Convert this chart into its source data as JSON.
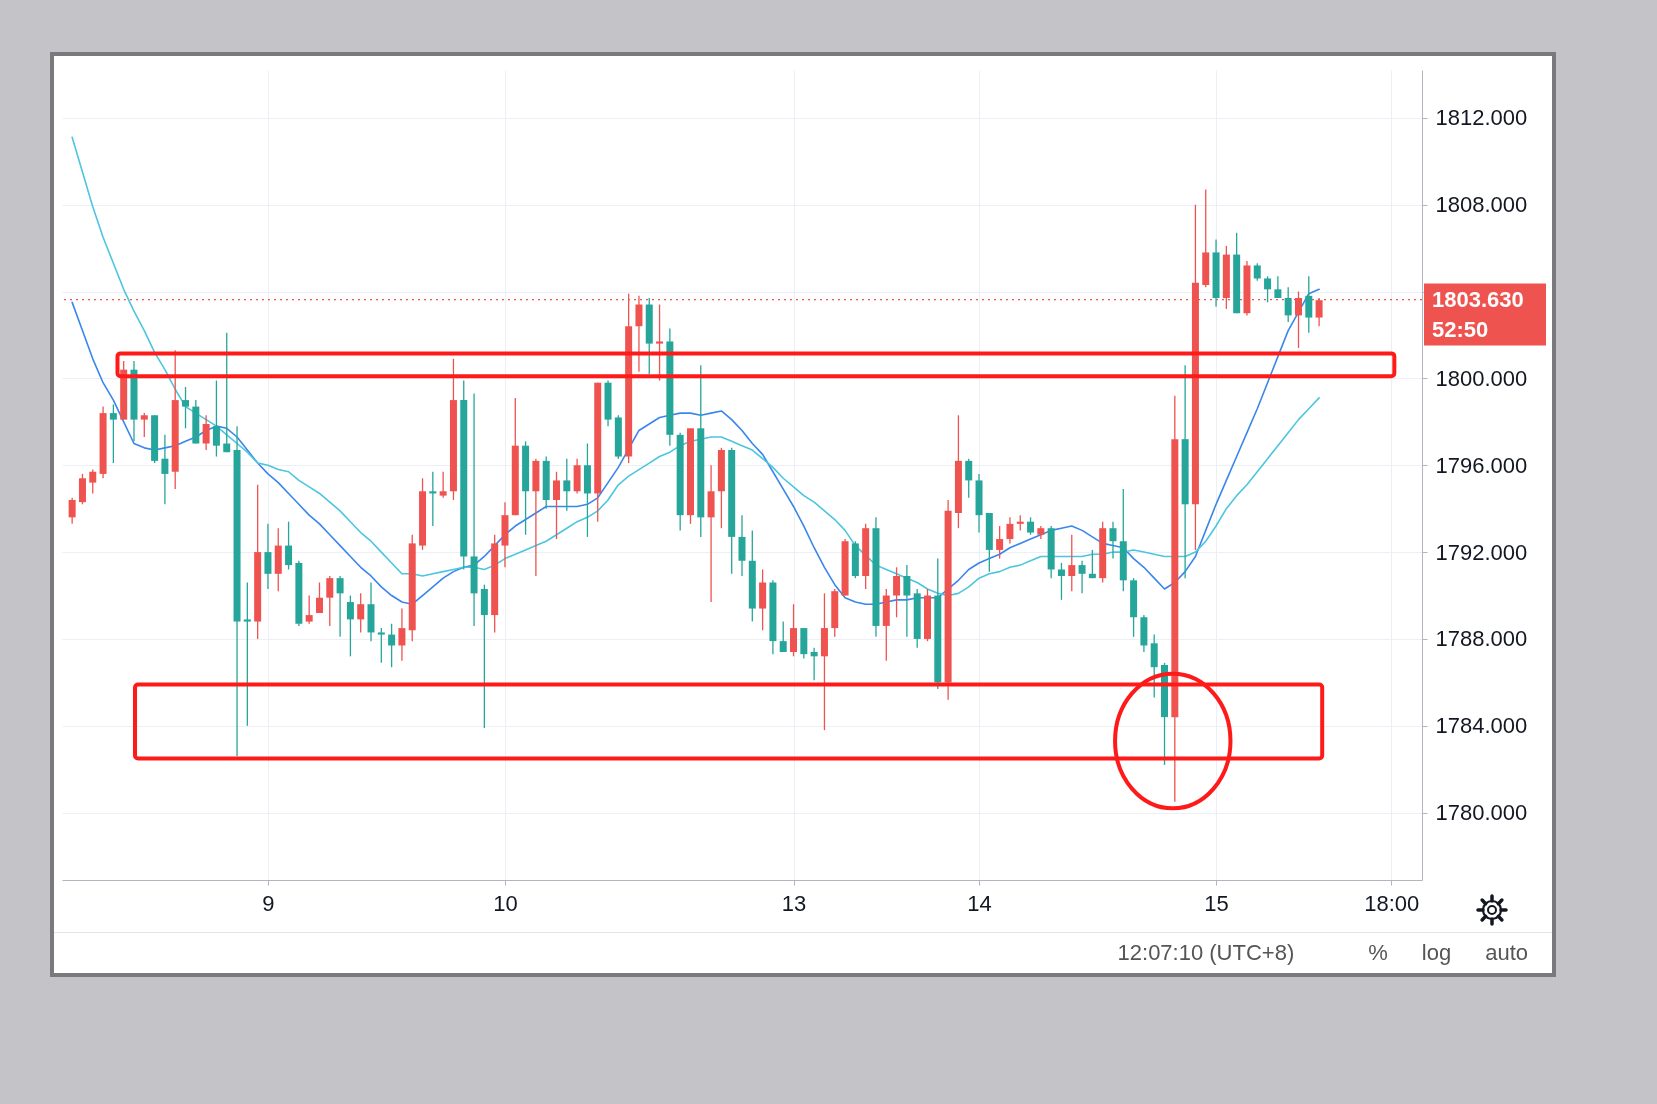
{
  "chart_data": {
    "type": "candlestick",
    "categories": [
      null,
      null,
      null,
      null,
      null,
      null,
      null,
      null,
      null,
      null,
      null,
      null,
      null,
      null,
      null,
      null,
      null,
      null,
      null,
      "9",
      null,
      null,
      null,
      null,
      null,
      null,
      null,
      null,
      null,
      null,
      null,
      null,
      null,
      null,
      null,
      null,
      null,
      null,
      null,
      null,
      null,
      null,
      "10",
      null,
      null,
      null,
      null,
      null,
      null,
      null,
      null,
      null,
      null,
      null,
      null,
      null,
      null,
      null,
      null,
      null,
      null,
      null,
      null,
      null,
      null,
      null,
      null,
      null,
      null,
      null,
      "13",
      null,
      null,
      null,
      null,
      null,
      null,
      null,
      null,
      null,
      null,
      null,
      null,
      null,
      null,
      null,
      null,
      null,
      "14",
      null,
      null,
      null,
      null,
      null,
      null,
      null,
      null,
      null,
      null,
      null,
      null,
      null,
      null,
      null,
      null,
      null,
      null,
      null,
      null,
      null,
      null,
      "15",
      null,
      null,
      null,
      null,
      null,
      null,
      null,
      null,
      null,
      null,
      null,
      null,
      null,
      null,
      null,
      null,
      "18:00"
    ],
    "ohlc": [
      [
        1793.6,
        1794.5,
        1793.3,
        1794.4
      ],
      [
        1794.3,
        1795.6,
        1794.2,
        1795.4
      ],
      [
        1795.2,
        1795.8,
        1794.7,
        1795.7
      ],
      [
        1795.6,
        1798.7,
        1795.4,
        1798.4
      ],
      [
        1798.4,
        1798.8,
        1796.1,
        1798.1
      ],
      [
        1798.1,
        1800.8,
        1798.1,
        1800.4
      ],
      [
        1800.4,
        1800.8,
        1797.1,
        1798.1
      ],
      [
        1798.1,
        1798.4,
        1797.3,
        1798.3
      ],
      [
        1798.3,
        1798.3,
        1796.1,
        1796.2
      ],
      [
        1796.3,
        1797.4,
        1794.2,
        1795.6
      ],
      [
        1795.7,
        1801.3,
        1794.9,
        1799.0
      ],
      [
        1799.0,
        1799.6,
        1797.7,
        1798.7
      ],
      [
        1798.7,
        1799.0,
        1797.0,
        1797.0
      ],
      [
        1797.0,
        1798.3,
        1796.7,
        1797.9
      ],
      [
        1797.8,
        1799.9,
        1796.4,
        1796.9
      ],
      [
        1797.0,
        1802.1,
        1796.6,
        1796.6
      ],
      [
        1796.7,
        1797.8,
        1782.6,
        1788.8
      ],
      [
        1788.9,
        1790.6,
        1784.0,
        1788.8
      ],
      [
        1788.8,
        1795.1,
        1788.0,
        1792.0
      ],
      [
        1792.0,
        1793.3,
        1790.3,
        1791.0
      ],
      [
        1791.0,
        1793.1,
        1790.2,
        1792.3
      ],
      [
        1792.3,
        1793.4,
        1791.2,
        1791.4
      ],
      [
        1791.5,
        1791.6,
        1788.6,
        1788.7
      ],
      [
        1788.8,
        1790.0,
        1788.7,
        1789.1
      ],
      [
        1789.2,
        1790.6,
        1789.2,
        1789.9
      ],
      [
        1789.9,
        1790.9,
        1788.6,
        1790.8
      ],
      [
        1790.8,
        1790.9,
        1788.1,
        1790.1
      ],
      [
        1789.7,
        1790.0,
        1787.2,
        1788.9
      ],
      [
        1788.9,
        1790.1,
        1788.3,
        1789.6
      ],
      [
        1789.6,
        1790.6,
        1787.9,
        1788.3
      ],
      [
        1788.3,
        1788.5,
        1786.9,
        1788.2
      ],
      [
        1788.2,
        1788.7,
        1786.7,
        1787.7
      ],
      [
        1787.7,
        1789.4,
        1787.0,
        1788.5
      ],
      [
        1788.4,
        1792.8,
        1787.9,
        1792.4
      ],
      [
        1792.3,
        1795.4,
        1792.1,
        1794.8
      ],
      [
        1794.8,
        1795.7,
        1793.2,
        1794.7
      ],
      [
        1794.6,
        1795.7,
        1794.5,
        1794.8
      ],
      [
        1794.8,
        1800.9,
        1794.4,
        1799.0
      ],
      [
        1799.0,
        1799.9,
        1791.2,
        1791.8
      ],
      [
        1791.8,
        1799.3,
        1788.6,
        1790.1
      ],
      [
        1790.3,
        1790.5,
        1783.9,
        1789.1
      ],
      [
        1789.1,
        1792.8,
        1788.3,
        1792.4
      ],
      [
        1792.3,
        1794.3,
        1791.3,
        1793.7
      ],
      [
        1793.7,
        1799.1,
        1793.7,
        1796.9
      ],
      [
        1796.9,
        1797.1,
        1792.8,
        1794.8
      ],
      [
        1794.8,
        1796.3,
        1790.9,
        1796.2
      ],
      [
        1796.2,
        1796.4,
        1794.0,
        1794.4
      ],
      [
        1794.4,
        1795.7,
        1792.6,
        1795.3
      ],
      [
        1795.3,
        1796.3,
        1793.9,
        1794.8
      ],
      [
        1794.8,
        1796.3,
        1794.7,
        1796.0
      ],
      [
        1796.0,
        1797.0,
        1792.7,
        1794.7
      ],
      [
        1794.7,
        1799.8,
        1793.4,
        1799.8
      ],
      [
        1799.8,
        1799.9,
        1797.8,
        1798.1
      ],
      [
        1798.2,
        1798.3,
        1796.3,
        1796.4
      ],
      [
        1796.4,
        1803.9,
        1796.1,
        1802.4
      ],
      [
        1802.4,
        1803.8,
        1800.3,
        1803.4
      ],
      [
        1803.4,
        1803.7,
        1800.2,
        1801.6
      ],
      [
        1801.6,
        1803.4,
        1799.9,
        1801.7
      ],
      [
        1801.7,
        1802.3,
        1796.9,
        1797.4
      ],
      [
        1797.4,
        1797.5,
        1793.0,
        1793.7
      ],
      [
        1793.7,
        1797.7,
        1793.3,
        1797.7
      ],
      [
        1797.7,
        1800.6,
        1792.7,
        1793.6
      ],
      [
        1793.6,
        1796.0,
        1789.7,
        1794.8
      ],
      [
        1794.8,
        1796.8,
        1793.1,
        1796.7
      ],
      [
        1796.7,
        1796.8,
        1791.0,
        1792.7
      ],
      [
        1792.7,
        1793.7,
        1790.9,
        1791.6
      ],
      [
        1791.6,
        1793.0,
        1788.8,
        1789.4
      ],
      [
        1789.4,
        1791.2,
        1788.4,
        1790.6
      ],
      [
        1790.6,
        1790.7,
        1787.3,
        1787.9
      ],
      [
        1787.9,
        1788.8,
        1787.4,
        1787.4
      ],
      [
        1787.4,
        1789.6,
        1787.2,
        1788.5
      ],
      [
        1788.5,
        1788.5,
        1787.1,
        1787.3
      ],
      [
        1787.4,
        1787.6,
        1786.1,
        1787.2
      ],
      [
        1787.2,
        1790.1,
        1783.8,
        1788.5
      ],
      [
        1788.5,
        1790.3,
        1788.1,
        1790.2
      ],
      [
        1790.0,
        1792.6,
        1790.0,
        1792.5
      ],
      [
        1792.4,
        1792.5,
        1790.8,
        1790.9
      ],
      [
        1790.9,
        1793.3,
        1790.3,
        1793.1
      ],
      [
        1793.1,
        1793.6,
        1788.1,
        1788.6
      ],
      [
        1788.6,
        1790.3,
        1787.0,
        1790.0
      ],
      [
        1790.0,
        1791.3,
        1789.0,
        1790.9
      ],
      [
        1790.9,
        1791.4,
        1788.1,
        1790.0
      ],
      [
        1790.1,
        1790.3,
        1787.6,
        1788.0
      ],
      [
        1788.0,
        1790.3,
        1787.9,
        1790.0
      ],
      [
        1790.0,
        1791.7,
        1785.7,
        1786.0
      ],
      [
        1786.0,
        1794.4,
        1785.2,
        1793.9
      ],
      [
        1793.8,
        1798.3,
        1793.1,
        1796.2
      ],
      [
        1796.2,
        1796.3,
        1794.5,
        1795.3
      ],
      [
        1795.3,
        1795.6,
        1792.9,
        1793.7
      ],
      [
        1793.8,
        1793.8,
        1791.1,
        1792.1
      ],
      [
        1792.1,
        1793.2,
        1791.7,
        1792.6
      ],
      [
        1792.6,
        1793.6,
        1792.4,
        1793.3
      ],
      [
        1793.3,
        1793.7,
        1793.0,
        1793.4
      ],
      [
        1793.4,
        1793.6,
        1792.8,
        1792.9
      ],
      [
        1792.8,
        1793.2,
        1792.6,
        1793.1
      ],
      [
        1793.1,
        1793.2,
        1790.8,
        1791.2
      ],
      [
        1791.2,
        1791.5,
        1789.8,
        1790.9
      ],
      [
        1790.9,
        1792.8,
        1790.2,
        1791.4
      ],
      [
        1791.4,
        1791.6,
        1790.1,
        1791.0
      ],
      [
        1791.0,
        1792.1,
        1790.8,
        1790.8
      ],
      [
        1790.8,
        1793.4,
        1790.6,
        1793.1
      ],
      [
        1793.1,
        1793.4,
        1791.7,
        1792.5
      ],
      [
        1792.5,
        1794.9,
        1790.2,
        1790.7
      ],
      [
        1790.7,
        1790.8,
        1788.1,
        1789.0
      ],
      [
        1789.0,
        1789.1,
        1787.4,
        1787.7
      ],
      [
        1787.8,
        1788.2,
        1785.3,
        1786.7
      ],
      [
        1786.8,
        1786.9,
        1782.2,
        1784.4
      ],
      [
        1784.4,
        1799.2,
        1780.5,
        1797.2
      ],
      [
        1797.2,
        1800.6,
        1790.8,
        1794.2
      ],
      [
        1794.2,
        1808.0,
        1792.1,
        1804.4
      ],
      [
        1804.3,
        1808.7,
        1804.2,
        1805.8
      ],
      [
        1805.8,
        1806.4,
        1803.3,
        1803.7
      ],
      [
        1803.7,
        1806.1,
        1803.2,
        1805.7
      ],
      [
        1805.7,
        1806.7,
        1803.0,
        1803.0
      ],
      [
        1803.0,
        1805.4,
        1802.9,
        1805.2
      ],
      [
        1805.2,
        1805.3,
        1804.5,
        1804.6
      ],
      [
        1804.6,
        1804.7,
        1803.5,
        1804.1
      ],
      [
        1804.1,
        1804.7,
        1803.7,
        1803.7
      ],
      [
        1803.7,
        1804.2,
        1802.6,
        1802.9
      ],
      [
        1802.9,
        1804.0,
        1801.4,
        1803.7
      ],
      [
        1803.8,
        1804.7,
        1802.1,
        1802.8
      ],
      [
        1802.8,
        1803.7,
        1802.4,
        1803.6
      ],
      null,
      null,
      null,
      null,
      null,
      null,
      null
    ],
    "colors": [
      "#ef5350",
      "#ef5350",
      "#ef5350",
      "#ef5350",
      "#26a69a",
      "#ef5350",
      "#26a69a",
      "#ef5350",
      "#26a69a",
      "#26a69a",
      "#ef5350",
      "#26a69a",
      "#26a69a",
      "#ef5350",
      "#26a69a",
      "#26a69a",
      "#26a69a",
      "#26a69a",
      "#ef5350",
      "#26a69a",
      "#ef5350",
      "#26a69a",
      "#26a69a",
      "#ef5350",
      "#ef5350",
      "#ef5350",
      "#26a69a",
      "#26a69a",
      "#ef5350",
      "#26a69a",
      "#26a69a",
      "#26a69a",
      "#ef5350",
      "#ef5350",
      "#ef5350",
      "#26a69a",
      "#ef5350",
      "#ef5350",
      "#26a69a",
      "#26a69a",
      "#26a69a",
      "#ef5350",
      "#ef5350",
      "#ef5350",
      "#26a69a",
      "#ef5350",
      "#26a69a",
      "#ef5350",
      "#26a69a",
      "#ef5350",
      "#26a69a",
      "#ef5350",
      "#26a69a",
      "#26a69a",
      "#ef5350",
      "#ef5350",
      "#26a69a",
      "#ef5350",
      "#26a69a",
      "#26a69a",
      "#ef5350",
      "#26a69a",
      "#ef5350",
      "#ef5350",
      "#26a69a",
      "#26a69a",
      "#26a69a",
      "#ef5350",
      "#26a69a",
      "#26a69a",
      "#ef5350",
      "#26a69a",
      "#26a69a",
      "#ef5350",
      "#ef5350",
      "#ef5350",
      "#26a69a",
      "#ef5350",
      "#26a69a",
      "#ef5350",
      "#ef5350",
      "#26a69a",
      "#26a69a",
      "#ef5350",
      "#26a69a",
      "#ef5350",
      "#ef5350",
      "#26a69a",
      "#26a69a",
      "#26a69a",
      "#ef5350",
      "#ef5350",
      "#ef5350",
      "#26a69a",
      "#ef5350",
      "#26a69a",
      "#26a69a",
      "#ef5350",
      "#26a69a",
      "#26a69a",
      "#ef5350",
      "#26a69a",
      "#26a69a",
      "#26a69a",
      "#26a69a",
      "#26a69a",
      "#26a69a",
      "#ef5350",
      "#26a69a",
      "#ef5350",
      "#ef5350",
      "#26a69a",
      "#ef5350",
      "#26a69a",
      "#ef5350",
      "#26a69a",
      "#26a69a",
      "#26a69a",
      "#26a69a",
      "#ef5350",
      "#26a69a",
      "#ef5350",
      null,
      null,
      null,
      null,
      null,
      null,
      null
    ],
    "series": [
      {
        "type": "line",
        "color": "#3a86ec",
        "values": [
          1803.5,
          1802.2,
          1800.9,
          1799.8,
          1799.0,
          1798.0,
          1797.0,
          1796.8,
          1796.7,
          1796.8,
          1796.9,
          1797.1,
          1797.3,
          1797.6,
          1797.8,
          1797.7,
          1797.3,
          1796.7,
          1796.1,
          1795.6,
          1795.2,
          1794.7,
          1794.2,
          1793.7,
          1793.3,
          1792.8,
          1792.3,
          1791.8,
          1791.3,
          1790.9,
          1790.4,
          1790.0,
          1789.7,
          1789.6,
          1790.0,
          1790.4,
          1790.8,
          1791.1,
          1791.3,
          1791.4,
          1791.8,
          1792.3,
          1792.8,
          1793.2,
          1793.5,
          1793.8,
          1794.1,
          1794.1,
          1794.1,
          1794.1,
          1794.2,
          1794.5,
          1795.2,
          1795.9,
          null,
          1797.6,
          1797.9,
          1798.2,
          1798.3,
          1798.4,
          1798.4,
          1798.3,
          1798.4,
          1798.5,
          1798.1,
          1797.6,
          1797.0,
          1796.5,
          1795.7,
          1794.9,
          1794.1,
          1793.2,
          1792.2,
          1791.3,
          1790.5,
          1789.9,
          1789.7,
          1789.6,
          1789.6,
          1789.7,
          1789.8,
          1789.8,
          1789.9,
          1789.9,
          1789.9,
          null,
          1790.7,
          1791.2,
          1791.5,
          1791.7,
          1791.9,
          1792.2,
          1792.4,
          1792.6,
          1792.8,
          1793.0,
          1793.1,
          1793.2,
          1793.0,
          1792.7,
          1792.4,
          1792.3,
          1792.2,
          1791.7,
          1791.3,
          1790.8,
          1790.3,
          1790.6,
          1791.1,
          1791.8,
          1793.0,
          1794.2,
          1795.3,
          1796.4,
          1797.5,
          1798.6,
          1799.8,
          1801.0,
          1802.2,
          null,
          1803.9,
          1804.1,
          null,
          null,
          null,
          null,
          null,
          null,
          null
        ]
      },
      {
        "type": "line",
        "color": "#4cc6de",
        "values": [
          1811.1,
          1809.5,
          1807.9,
          1806.5,
          1805.3,
          1804.1,
          1803.1,
          1802.2,
          1801.2,
          1800.4,
          1799.5,
          1798.7,
          1798.4,
          1798.1,
          1797.8,
          1797.4,
          1797.0,
          1796.6,
          1796.1,
          1796.0,
          1795.8,
          1795.7,
          1795.3,
          1795.0,
          1794.7,
          1794.3,
          1793.9,
          1793.4,
          1792.9,
          1792.5,
          1792.0,
          1791.5,
          1791.0,
          1791.0,
          1790.9,
          1791.0,
          1791.1,
          1791.2,
          1791.3,
          1791.3,
          1791.2,
          1791.4,
          1791.7,
          1791.9,
          1792.1,
          1792.3,
          1792.5,
          1792.8,
          1793.1,
          1793.4,
          1793.6,
          1793.9,
          1794.4,
          1795.1,
          1795.5,
          1795.8,
          1796.1,
          1796.4,
          1796.6,
          1796.9,
          1797.1,
          1797.2,
          1797.3,
          1797.3,
          1797.1,
          1796.9,
          1796.7,
          1796.3,
          1795.9,
          1795.4,
          1795.0,
          1794.6,
          1794.3,
          1793.9,
          1793.5,
          1793.0,
          1792.3,
          null,
          1791.4,
          1791.2,
          1791.0,
          1790.8,
          1790.6,
          1790.3,
          1790.1,
          1790.0,
          1790.1,
          1790.4,
          1790.8,
          1791.0,
          1791.1,
          1791.3,
          1791.4,
          1791.6,
          1791.8,
          1791.8,
          1791.8,
          1791.8,
          1791.8,
          1791.9,
          1791.9,
          1792.0,
          1792.0,
          1792.1,
          1792.0,
          1791.9,
          1791.8,
          1791.8,
          1791.8,
          1792.0,
          1792.5,
          1793.2,
          1794.0,
          1794.6,
          1795.1,
          1795.7,
          1796.3,
          1796.9,
          1797.5,
          1798.1,
          1798.6,
          1799.1,
          null,
          null,
          null,
          null,
          null,
          null,
          null
        ]
      }
    ],
    "ylim": [
      1776.9,
      1814.2
    ],
    "yticks": [
      {
        "value": 1780,
        "label": "1780.000"
      },
      {
        "value": 1784,
        "label": "1784.000"
      },
      {
        "value": 1788,
        "label": "1788.000"
      },
      {
        "value": 1792,
        "label": "1792.000"
      },
      {
        "value": 1796,
        "label": "1796.000"
      },
      {
        "value": 1800,
        "label": "1800.000"
      },
      {
        "value": 1804,
        "label": null
      },
      {
        "value": 1808,
        "label": "1808.000"
      },
      {
        "value": 1812,
        "label": "1812.000"
      }
    ],
    "ref_lines": [
      {
        "axis": "y",
        "value": 1803.63,
        "label": "1803.630",
        "color": "#ef5350",
        "line_style": "dotted"
      }
    ],
    "annotations": [
      "52:50",
      "12:07:10 (UTC+8)",
      "%",
      "log",
      "auto"
    ],
    "grid": true
  }
}
